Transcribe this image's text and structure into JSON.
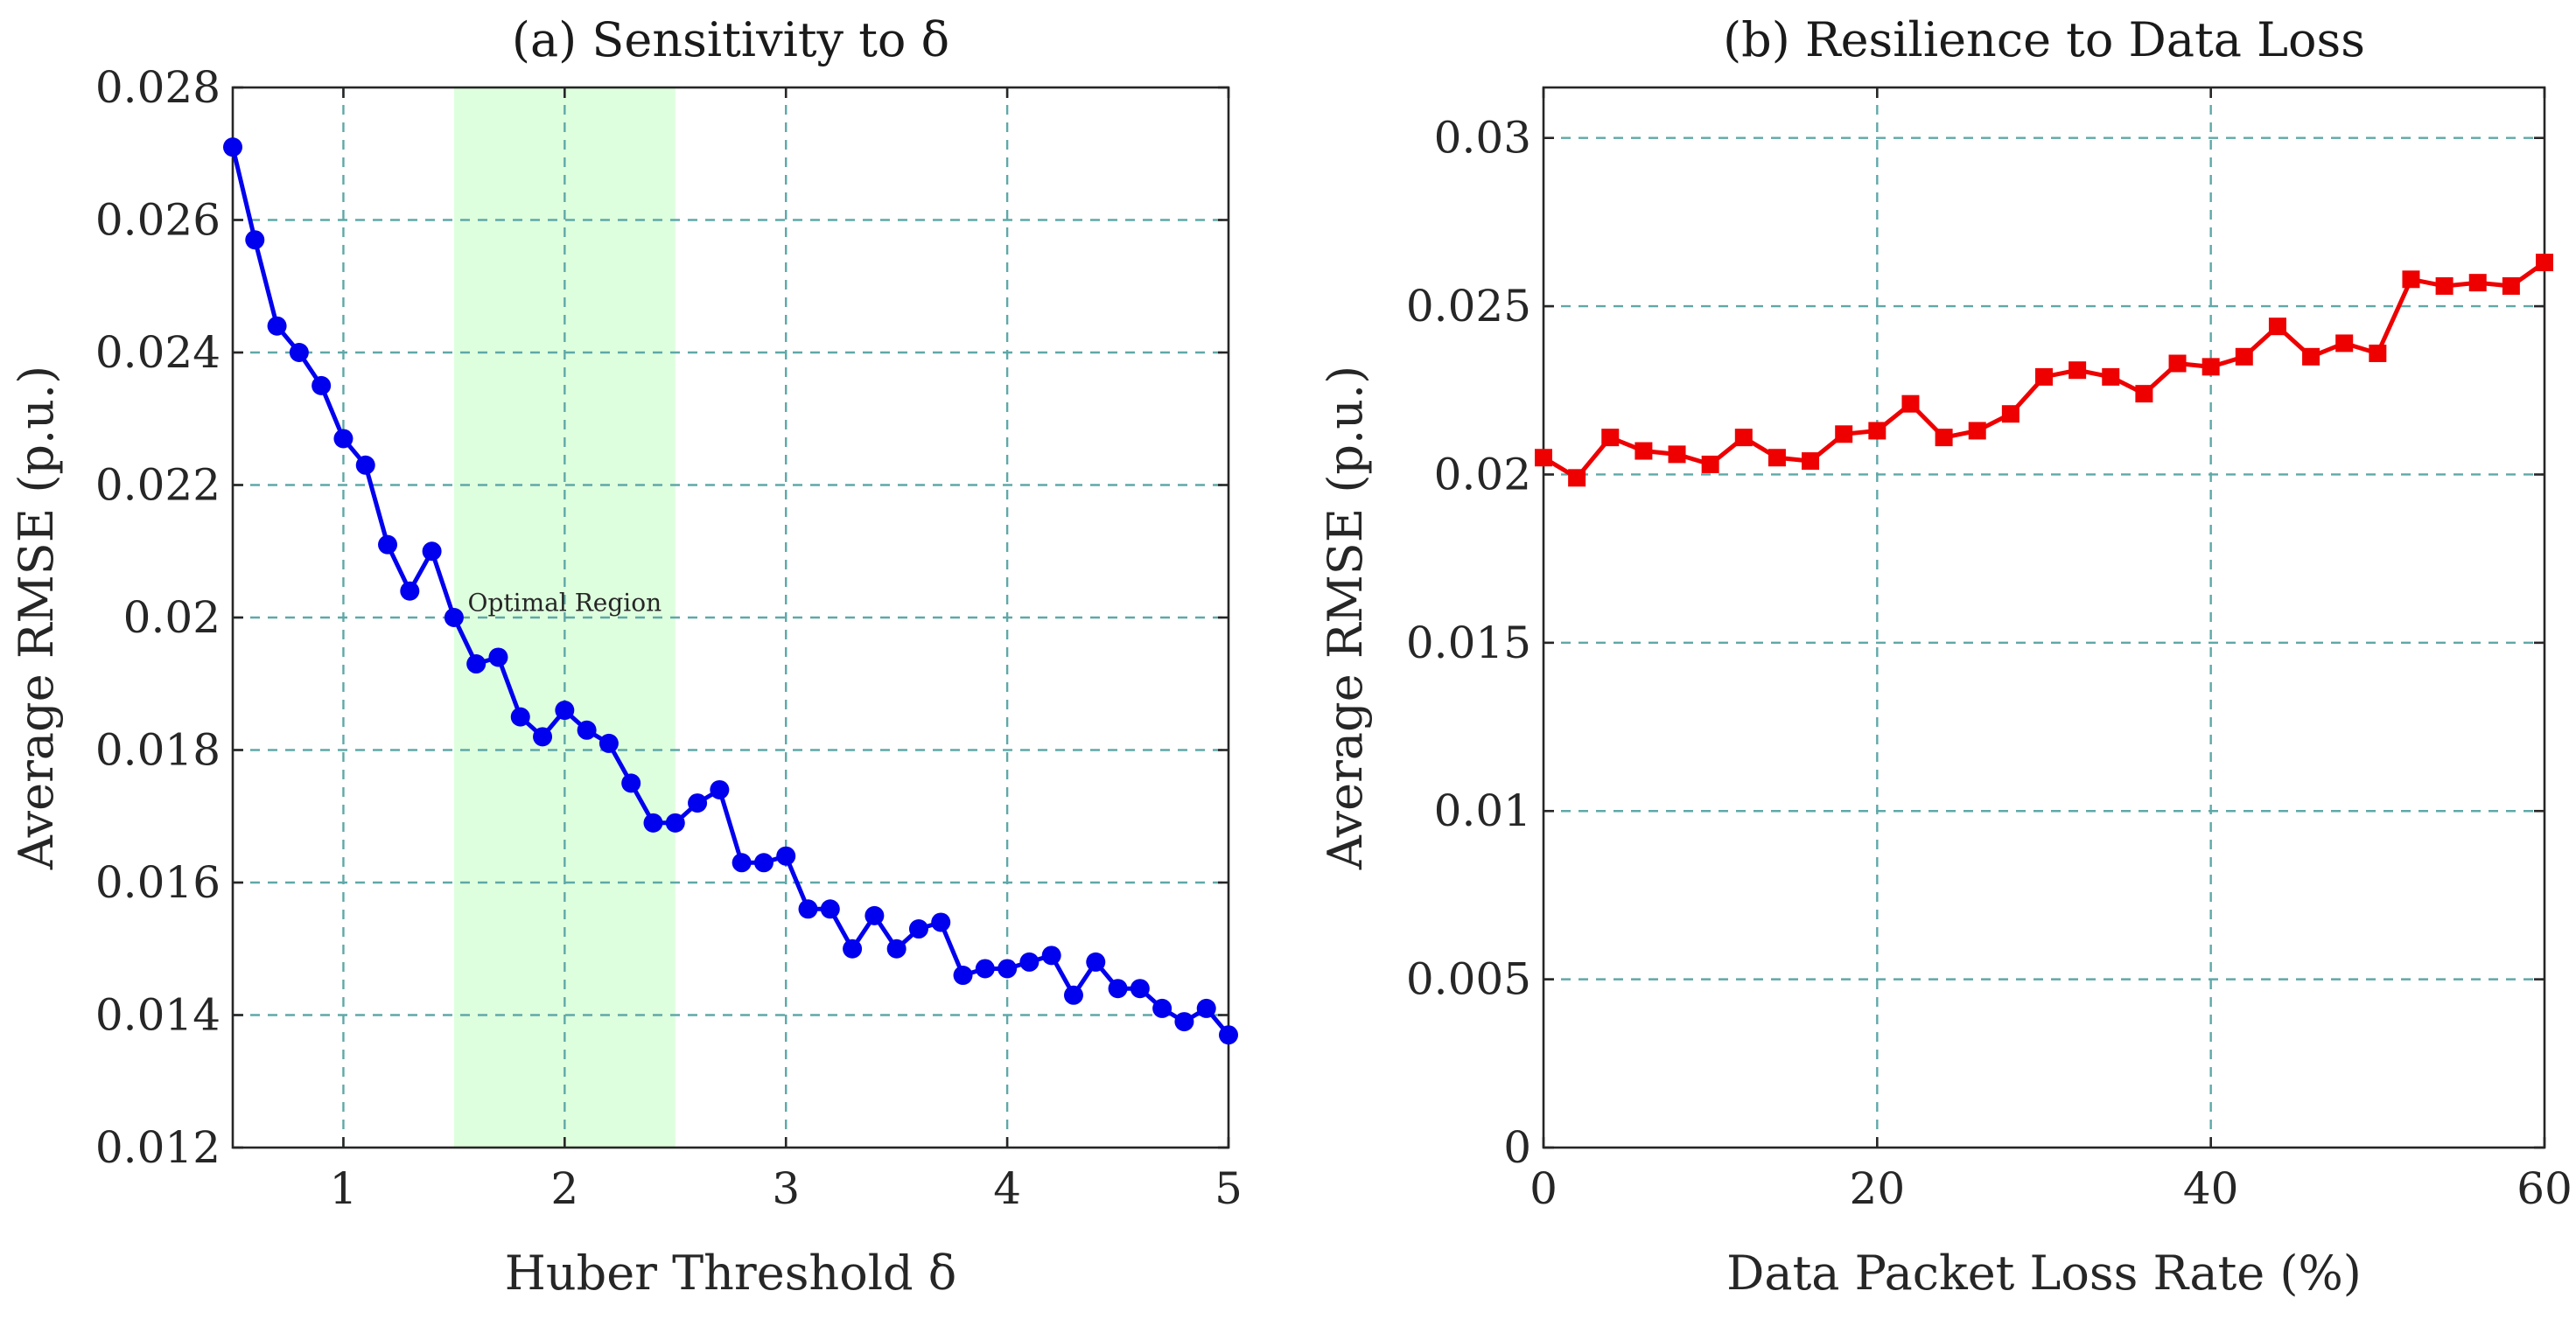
{
  "chart_data": [
    {
      "type": "line",
      "title": "(a) Sensitivity to δ",
      "xlabel": "Huber Threshold δ",
      "ylabel": "Average RMSE (p.u.)",
      "xlim": [
        0.5,
        5
      ],
      "ylim": [
        0.012,
        0.028
      ],
      "xticks": [
        1,
        2,
        3,
        4,
        5
      ],
      "xtick_labels": [
        "1",
        "2",
        "3",
        "4",
        "5"
      ],
      "yticks": [
        0.012,
        0.014,
        0.016,
        0.018,
        0.02,
        0.022,
        0.024,
        0.026,
        0.028
      ],
      "ytick_labels": [
        "0.012",
        "0.014",
        "0.016",
        "0.018",
        "0.02",
        "0.022",
        "0.024",
        "0.026",
        "0.028"
      ],
      "grid": true,
      "shaded_region": {
        "x_range": [
          1.5,
          2.5
        ],
        "label": "Optimal Region",
        "color": "#ccffcc"
      },
      "series": [
        {
          "color": "#0000ee",
          "marker": "circle",
          "x": [
            0.5,
            0.6,
            0.7,
            0.8,
            0.9,
            1.0,
            1.1,
            1.2,
            1.3,
            1.4,
            1.5,
            1.6,
            1.7,
            1.8,
            1.9,
            2.0,
            2.1,
            2.2,
            2.3,
            2.4,
            2.5,
            2.6,
            2.7,
            2.8,
            2.9,
            3.0,
            3.1,
            3.2,
            3.3,
            3.4,
            3.5,
            3.6,
            3.7,
            3.8,
            3.9,
            4.0,
            4.1,
            4.2,
            4.3,
            4.4,
            4.5,
            4.6,
            4.7,
            4.8,
            4.9,
            5.0
          ],
          "y": [
            0.0271,
            0.0257,
            0.0244,
            0.024,
            0.0235,
            0.0227,
            0.0223,
            0.0211,
            0.0204,
            0.021,
            0.02,
            0.0193,
            0.0194,
            0.0185,
            0.0182,
            0.0186,
            0.0183,
            0.0181,
            0.0175,
            0.0169,
            0.0169,
            0.0172,
            0.0174,
            0.0163,
            0.0163,
            0.0164,
            0.0156,
            0.0156,
            0.015,
            0.0155,
            0.015,
            0.0153,
            0.0154,
            0.0146,
            0.0147,
            0.0147,
            0.0148,
            0.0149,
            0.0143,
            0.0148,
            0.0144,
            0.0144,
            0.0141,
            0.0139,
            0.0141,
            0.0137
          ]
        }
      ]
    },
    {
      "type": "line",
      "title": "(b) Resilience to Data Loss",
      "xlabel": "Data Packet Loss Rate (%)",
      "ylabel": "Average RMSE (p.u.)",
      "xlim": [
        0,
        60
      ],
      "ylim": [
        0,
        0.0315
      ],
      "xticks": [
        0,
        20,
        40,
        60
      ],
      "xtick_labels": [
        "0",
        "20",
        "40",
        "60"
      ],
      "yticks": [
        0,
        0.005,
        0.01,
        0.015,
        0.02,
        0.025,
        0.03
      ],
      "ytick_labels": [
        "0",
        "0.005",
        "0.01",
        "0.015",
        "0.02",
        "0.025",
        "0.03"
      ],
      "grid": true,
      "series": [
        {
          "color": "#ee0000",
          "marker": "square",
          "x": [
            0,
            2,
            4,
            6,
            8,
            10,
            12,
            14,
            16,
            18,
            20,
            22,
            24,
            26,
            28,
            30,
            32,
            34,
            36,
            38,
            40,
            42,
            44,
            46,
            48,
            50,
            52,
            54,
            56,
            58,
            60
          ],
          "y": [
            0.0205,
            0.0199,
            0.0211,
            0.0207,
            0.0206,
            0.0203,
            0.0211,
            0.0205,
            0.0204,
            0.0212,
            0.0213,
            0.0221,
            0.0211,
            0.0213,
            0.0218,
            0.0229,
            0.0231,
            0.0229,
            0.0224,
            0.0233,
            0.0232,
            0.0235,
            0.0244,
            0.0235,
            0.0239,
            0.0236,
            0.0258,
            0.0256,
            0.0257,
            0.0256,
            0.0263
          ]
        }
      ]
    }
  ]
}
